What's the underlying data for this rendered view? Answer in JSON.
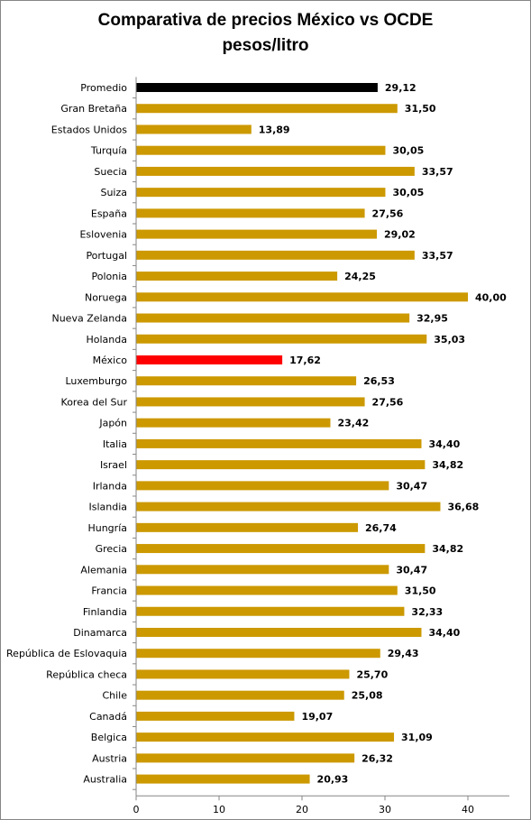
{
  "chart_data": {
    "type": "bar",
    "orientation": "horizontal",
    "title": "Comparativa de precios México vs OCDE",
    "subtitle": "pesos/litro",
    "categories": [
      "Promedio",
      "Gran Bretaña",
      "Estados Unidos",
      "Turquía",
      "Suecia",
      "Suiza",
      "España",
      "Eslovenia",
      "Portugal",
      "Polonia",
      "Noruega",
      "Nueva Zelanda",
      "Holanda",
      "México",
      "Luxemburgo",
      "Korea del Sur",
      "Japón",
      "Italia",
      "Israel",
      "Irlanda",
      "Islandia",
      "Hungría",
      "Grecia",
      "Alemania",
      "Francia",
      "Finlandia",
      "Dinamarca",
      "República de Eslovaquia",
      "República checa",
      "Chile",
      "Canadá",
      "Belgica",
      "Austria",
      "Australia"
    ],
    "values": [
      29.12,
      31.5,
      13.89,
      30.05,
      33.57,
      30.05,
      27.56,
      29.02,
      33.57,
      24.25,
      40.0,
      32.95,
      35.03,
      17.62,
      26.53,
      27.56,
      23.42,
      34.4,
      34.82,
      30.47,
      36.68,
      26.74,
      34.82,
      30.47,
      31.5,
      32.33,
      34.4,
      29.43,
      25.7,
      25.08,
      19.07,
      31.09,
      26.32,
      20.93
    ],
    "value_labels": [
      "29,12",
      "31,50",
      "13,89",
      "30,05",
      "33,57",
      "30,05",
      "27,56",
      "29,02",
      "33,57",
      "24,25",
      "40,00",
      "32,95",
      "35,03",
      "17,62",
      "26,53",
      "27,56",
      "23,42",
      "34,40",
      "34,82",
      "30,47",
      "36,68",
      "26,74",
      "34,82",
      "30,47",
      "31,50",
      "32,33",
      "34,40",
      "29,43",
      "25,70",
      "25,08",
      "19,07",
      "31,09",
      "26,32",
      "20,93"
    ],
    "colors": {
      "default": "#CC9900",
      "Promedio": "#000000",
      "México": "#FF0000",
      "axis": "#868686"
    },
    "xlim": [
      0,
      45
    ],
    "xticks": [
      0,
      10,
      20,
      30,
      40
    ],
    "xlabel": "",
    "ylabel": "",
    "grid": false,
    "legend": "none"
  }
}
